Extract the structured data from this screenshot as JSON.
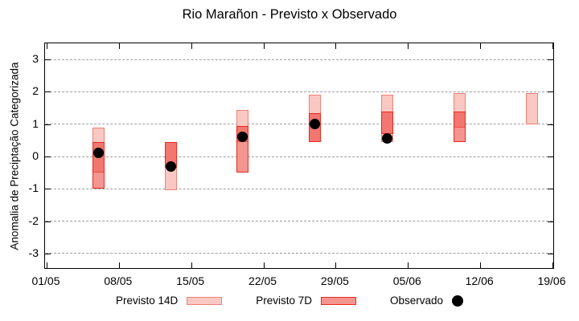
{
  "title": "Rio Marañon - Previsto x Observado",
  "y_axis": {
    "label": "Anomalia de Preciptação Categorizada",
    "tick_labels": [
      "3",
      "2",
      "1",
      "0",
      "-1",
      "-2",
      "-3"
    ],
    "tick_values": [
      3,
      2,
      1,
      0,
      -1,
      -2,
      -3
    ],
    "range": [
      -3.5,
      3.5
    ]
  },
  "x_axis": {
    "tick_labels": [
      "01/05",
      "08/05",
      "15/05",
      "22/05",
      "29/05",
      "05/06",
      "12/06",
      "19/06"
    ],
    "tick_days": [
      0,
      7,
      14,
      21,
      28,
      35,
      42,
      49
    ]
  },
  "legend": {
    "items": [
      {
        "label": "Previsto 14D",
        "swatch": "box-light"
      },
      {
        "label": "Previsto 7D",
        "swatch": "box-red"
      },
      {
        "label": "Observado",
        "swatch": "dot"
      }
    ]
  },
  "colors": {
    "forecast14_fill": "#f9c8c3",
    "forecast14_border": "#f08075",
    "forecast7_fill_overlay": "rgba(230,20,10,0.45)",
    "forecast7_border": "#e8291f",
    "forecast7_solid": "#f5958f",
    "observed": "#000000",
    "grid": "#9e9e9e",
    "axis": "#000000"
  },
  "chart_data": {
    "type": "candlestick+scatter",
    "title": "Rio Marañon - Previsto x Observado",
    "ylabel": "Anomalia de Preciptação Categorizada",
    "ylim": [
      -3.5,
      3.5
    ],
    "grid": "dashed horizontal",
    "legend_position": "bottom",
    "x_tick_labels": [
      "01/05",
      "08/05",
      "15/05",
      "22/05",
      "29/05",
      "05/06",
      "12/06",
      "19/06"
    ],
    "series": [
      {
        "name": "Previsto 14D",
        "type": "range-box",
        "points": [
          {
            "date": "06/05",
            "day": 5,
            "high": 0.9,
            "low": -0.5
          },
          {
            "date": "13/05",
            "day": 12,
            "high": 0.45,
            "low": -1.05
          },
          {
            "date": "20/05",
            "day": 19,
            "high": 1.45,
            "low": 0.45
          },
          {
            "date": "27/05",
            "day": 26,
            "high": 1.9,
            "low": 0.45
          },
          {
            "date": "03/06",
            "day": 33,
            "high": 1.9,
            "low": 0.45
          },
          {
            "date": "10/06",
            "day": 40,
            "high": 1.95,
            "low": 0.9
          },
          {
            "date": "17/06",
            "day": 47,
            "high": 1.95,
            "low": 1.0
          }
        ]
      },
      {
        "name": "Previsto 7D",
        "type": "range-box",
        "points": [
          {
            "date": "06/05",
            "day": 5,
            "high": 0.45,
            "low": -1.0
          },
          {
            "date": "13/05",
            "day": 12,
            "high": 0.45,
            "low": -0.35
          },
          {
            "date": "20/05",
            "day": 19,
            "high": 0.95,
            "low": -0.5
          },
          {
            "date": "27/05",
            "day": 26,
            "high": 1.35,
            "low": 0.45
          },
          {
            "date": "03/06",
            "day": 33,
            "high": 1.4,
            "low": 0.7
          },
          {
            "date": "10/06",
            "day": 40,
            "high": 1.4,
            "low": 0.45
          }
        ]
      },
      {
        "name": "Observado",
        "type": "scatter",
        "points": [
          {
            "date": "06/05",
            "day": 5,
            "value": 0.1
          },
          {
            "date": "13/05",
            "day": 12,
            "value": -0.3
          },
          {
            "date": "20/05",
            "day": 19,
            "value": 0.6
          },
          {
            "date": "27/05",
            "day": 26,
            "value": 1.0
          },
          {
            "date": "03/06",
            "day": 33,
            "value": 0.55
          }
        ]
      }
    ]
  }
}
